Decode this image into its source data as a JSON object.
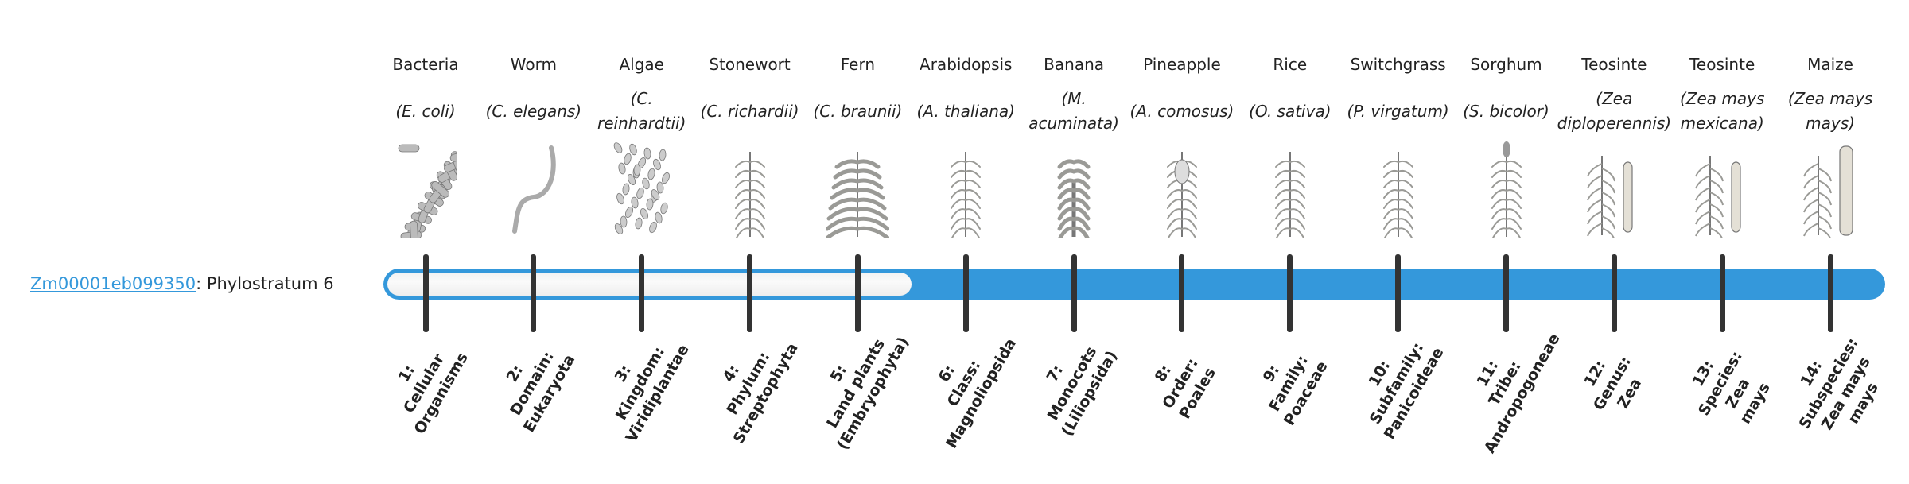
{
  "gene": {
    "id": "Zm00001eb099350",
    "suffix": ": Phylostratum 6"
  },
  "phylostratum": 6,
  "colors": {
    "bar": "#3498db",
    "tick": "#333333",
    "link": "#3498db",
    "empty": "#f5f5f5"
  },
  "strata": [
    {
      "common": "Bacteria",
      "latin": "(E. coli)",
      "icon": "bacteria-icon",
      "rank": [
        "1:",
        "Cellular",
        "Organisms"
      ]
    },
    {
      "common": "Worm",
      "latin": "(C. elegans)",
      "icon": "worm-icon",
      "rank": [
        "2:",
        "Domain:",
        "Eukaryota"
      ]
    },
    {
      "common": "Algae",
      "latin": "(C. reinhardtii)",
      "icon": "algae-icon",
      "rank": [
        "3:",
        "Kingdom:",
        "Viridiplantae"
      ]
    },
    {
      "common": "Stonewort",
      "latin": "(C. richardii)",
      "icon": "stonewort-icon",
      "rank": [
        "4:",
        "Phylum:",
        "Streptophyta"
      ]
    },
    {
      "common": "Fern",
      "latin": "(C. braunii)",
      "icon": "fern-icon",
      "rank": [
        "5:",
        "Land plants",
        "(Embryophyta)"
      ]
    },
    {
      "common": "Arabidopsis",
      "latin": "(A. thaliana)",
      "icon": "arabidopsis-icon",
      "rank": [
        "6:",
        "Class:",
        "Magnoliopsida"
      ]
    },
    {
      "common": "Banana",
      "latin": "(M. acuminata)",
      "icon": "banana-icon",
      "rank": [
        "7:",
        "Monocots",
        "(Liliopsida)"
      ]
    },
    {
      "common": "Pineapple",
      "latin": "(A. comosus)",
      "icon": "pineapple-icon",
      "rank": [
        "8:",
        "Order:",
        "Poales"
      ]
    },
    {
      "common": "Rice",
      "latin": "(O. sativa)",
      "icon": "rice-icon",
      "rank": [
        "9:",
        "Family:",
        "Poaceae"
      ]
    },
    {
      "common": "Switchgrass",
      "latin": "(P. virgatum)",
      "icon": "switchgrass-icon",
      "rank": [
        "10:",
        "Subfamily:",
        "Panicoideae"
      ]
    },
    {
      "common": "Sorghum",
      "latin": "(S. bicolor)",
      "icon": "sorghum-icon",
      "rank": [
        "11:",
        "Tribe:",
        "Andropogoneae"
      ]
    },
    {
      "common": "Teosinte",
      "latin": "(Zea diploperennis)",
      "icon": "teosinte-icon",
      "rank": [
        "12:",
        "Genus:",
        "Zea"
      ]
    },
    {
      "common": "Teosinte",
      "latin": "(Zea mays mexicana)",
      "icon": "teosinte-icon",
      "rank": [
        "13:",
        "Species:",
        "Zea",
        "mays"
      ]
    },
    {
      "common": "Maize",
      "latin": "(Zea mays mays)",
      "icon": "maize-icon",
      "rank": [
        "14:",
        "Subspecies:",
        "Zea mays",
        "mays"
      ]
    }
  ]
}
